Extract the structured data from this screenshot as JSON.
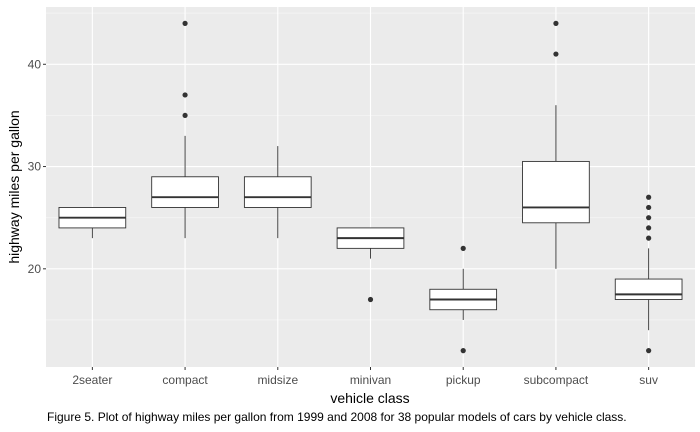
{
  "chart_data": {
    "type": "boxplot",
    "xlabel": "vehicle class",
    "ylabel": "highway miles per gallon",
    "ylim": [
      10.4,
      45.6
    ],
    "yticks": [
      20,
      30,
      40
    ],
    "grid": true,
    "categories": [
      "2seater",
      "compact",
      "midsize",
      "minivan",
      "pickup",
      "subcompact",
      "suv"
    ],
    "boxes": [
      {
        "category": "2seater",
        "whisker_low": 23,
        "q1": 24,
        "median": 25,
        "q3": 26,
        "whisker_high": 26,
        "outliers": []
      },
      {
        "category": "compact",
        "whisker_low": 23,
        "q1": 26,
        "median": 27,
        "q3": 29,
        "whisker_high": 33,
        "outliers": [
          35,
          37,
          44
        ]
      },
      {
        "category": "midsize",
        "whisker_low": 23,
        "q1": 26,
        "median": 27,
        "q3": 29,
        "whisker_high": 32,
        "outliers": []
      },
      {
        "category": "minivan",
        "whisker_low": 21,
        "q1": 22,
        "median": 23,
        "q3": 24,
        "whisker_high": 24,
        "outliers": [
          17
        ]
      },
      {
        "category": "pickup",
        "whisker_low": 15,
        "q1": 16,
        "median": 17,
        "q3": 18,
        "whisker_high": 20,
        "outliers": [
          12,
          22
        ]
      },
      {
        "category": "subcompact",
        "whisker_low": 20,
        "q1": 24.5,
        "median": 26,
        "q3": 30.5,
        "whisker_high": 36,
        "outliers": [
          41,
          44
        ]
      },
      {
        "category": "suv",
        "whisker_low": 14,
        "q1": 17,
        "median": 17.5,
        "q3": 19,
        "whisker_high": 22,
        "outliers": [
          12,
          23,
          24,
          25,
          26,
          27
        ]
      }
    ],
    "colors": {
      "panel": "#ebebeb",
      "grid_major": "#ffffff",
      "box_fill": "#ffffff",
      "box_line": "#333333",
      "outlier": "#333333"
    }
  },
  "caption": "Figure 5. Plot of highway miles per gallon from 1999 and 2008 for 38 popular models of cars by vehicle class."
}
